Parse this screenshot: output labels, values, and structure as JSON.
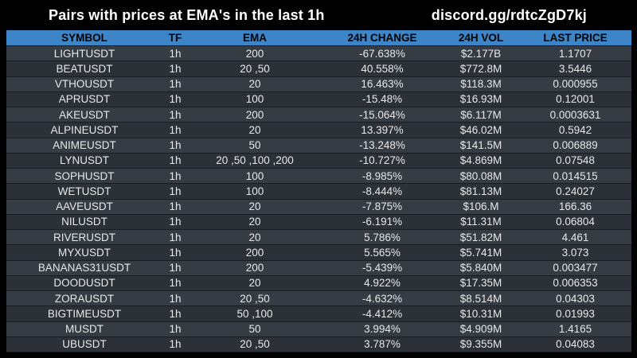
{
  "title": "Pairs with prices at EMA's in the last 1h",
  "link": "discord.gg/rdtcZgD7kj",
  "colors": {
    "background": "#010101",
    "header_bg": "#3d85c6",
    "header_text": "#000000",
    "row_odd": "#363c44",
    "row_even": "#2c3138",
    "row_text": "#e8e8e8",
    "title_text": "#ffffff"
  },
  "table": {
    "columns": [
      "SYMBOL",
      "TF",
      "EMA",
      "24H CHANGE",
      "24H VOL",
      "LAST PRICE"
    ],
    "rows": [
      [
        "LIGHTUSDT",
        "1h",
        "200",
        "-67.638%",
        "$2.177B",
        "1.1707"
      ],
      [
        "BEATUSDT",
        "1h",
        "20 ,50",
        "40.558%",
        "$772.8M",
        "3.5446"
      ],
      [
        "VTHOUSDT",
        "1h",
        "20",
        "16.463%",
        "$118.3M",
        "0.000955"
      ],
      [
        "APRUSDT",
        "1h",
        "100",
        "-15.48%",
        "$16.93M",
        "0.12001"
      ],
      [
        "AKEUSDT",
        "1h",
        "200",
        "-15.064%",
        "$6.117M",
        "0.0003631"
      ],
      [
        "ALPINEUSDT",
        "1h",
        "20",
        "13.397%",
        "$46.02M",
        "0.5942"
      ],
      [
        "ANIMEUSDT",
        "1h",
        "50",
        "-13.248%",
        "$141.5M",
        "0.006889"
      ],
      [
        "LYNUSDT",
        "1h",
        "20 ,50 ,100 ,200",
        "-10.727%",
        "$4.869M",
        "0.07548"
      ],
      [
        "SOPHUSDT",
        "1h",
        "100",
        "-8.985%",
        "$80.08M",
        "0.014515"
      ],
      [
        "WETUSDT",
        "1h",
        "100",
        "-8.444%",
        "$81.13M",
        "0.24027"
      ],
      [
        "AAVEUSDT",
        "1h",
        "20",
        "-7.875%",
        "$106.M",
        "166.36"
      ],
      [
        "NILUSDT",
        "1h",
        "20",
        "-6.191%",
        "$11.31M",
        "0.06804"
      ],
      [
        "RIVERUSDT",
        "1h",
        "20",
        "5.786%",
        "$51.82M",
        "4.461"
      ],
      [
        "MYXUSDT",
        "1h",
        "200",
        "5.565%",
        "$5.741M",
        "3.073"
      ],
      [
        "BANANAS31USDT",
        "1h",
        "200",
        "-5.439%",
        "$5.840M",
        "0.003477"
      ],
      [
        "DOODUSDT",
        "1h",
        "20",
        "4.922%",
        "$17.35M",
        "0.006353"
      ],
      [
        "ZORAUSDT",
        "1h",
        "20 ,50",
        "-4.632%",
        "$8.514M",
        "0.04303"
      ],
      [
        "BIGTIMEUSDT",
        "1h",
        "50 ,100",
        "-4.412%",
        "$10.31M",
        "0.01993"
      ],
      [
        "MUSDT",
        "1h",
        "50",
        "3.994%",
        "$4.909M",
        "1.4165"
      ],
      [
        "UBUSDT",
        "1h",
        "20 ,50",
        "3.787%",
        "$9.355M",
        "0.04083"
      ]
    ]
  }
}
